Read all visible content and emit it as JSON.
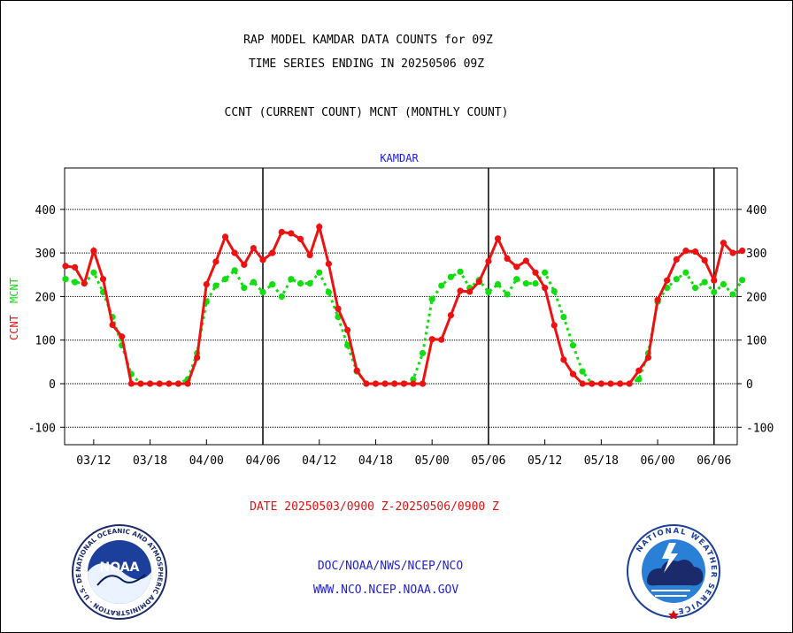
{
  "header": {
    "title_line1": "RAP MODEL KAMDAR DATA COUNTS for 09Z",
    "title_line2": "TIME SERIES ENDING IN 20250506 09Z",
    "subtitle": "CCNT (CURRENT COUNT) MCNT (MONTHLY COUNT)"
  },
  "footer": {
    "date_range": "DATE 20250503/0900 Z-20250506/0900 Z",
    "credit_line1": "DOC/NOAA/NWS/NCEP/NCO",
    "credit_line2": "WWW.NCO.NCEP.NOAA.GOV"
  },
  "logos": {
    "noaa_label": "NOAA",
    "noaa_ring_text": "NATIONAL OCEANIC AND ATMOSPHERIC ADMINISTRATION · U.S. DEPARTMENT OF COMMERCE ·",
    "nws_ring_text": "NATIONAL WEATHER SERVICE"
  },
  "colors": {
    "ccnt": "#ee1111",
    "mcnt": "#11dd11",
    "station": "#1a1ae6",
    "date_range": "#e01010",
    "credit": "#2222cc"
  },
  "chart_data": {
    "type": "line",
    "title": "KAMDAR",
    "ylabel_ccnt": "CCNT",
    "ylabel_mcnt": "MCNT",
    "ylim": [
      -140,
      495
    ],
    "yticks": [
      -100,
      0,
      100,
      200,
      300,
      400
    ],
    "x_tick_labels": [
      "03/12",
      "03/18",
      "04/00",
      "04/06",
      "04/12",
      "04/18",
      "05/00",
      "05/06",
      "05/12",
      "05/18",
      "06/00",
      "06/06"
    ],
    "x_tick_index": [
      3,
      9,
      15,
      21,
      27,
      33,
      39,
      45,
      51,
      57,
      63,
      69
    ],
    "day_boundaries_index": [
      21,
      45,
      69
    ],
    "grid": true,
    "series": [
      {
        "name": "CCNT",
        "values": [
          270,
          267,
          230,
          305,
          240,
          135,
          108,
          0,
          0,
          0,
          0,
          0,
          0,
          0,
          60,
          228,
          280,
          337,
          300,
          273,
          311,
          284,
          300,
          348,
          345,
          332,
          295,
          360,
          275,
          172,
          123,
          30,
          0,
          0,
          0,
          0,
          0,
          0,
          0,
          102,
          101,
          157,
          213,
          211,
          234,
          281,
          333,
          287,
          268,
          282,
          255,
          220,
          134,
          55,
          22,
          0,
          0,
          0,
          0,
          0,
          0,
          30,
          60,
          192,
          237,
          285,
          305,
          303,
          283,
          237,
          323,
          300,
          305
        ]
      },
      {
        "name": "MCNT",
        "values": [
          240,
          233,
          230,
          255,
          210,
          153,
          88,
          22,
          0,
          0,
          0,
          0,
          0,
          10,
          70,
          188,
          225,
          240,
          260,
          220,
          233,
          210,
          228,
          200,
          240,
          230,
          230,
          255,
          210,
          153,
          88,
          28,
          0,
          0,
          0,
          0,
          0,
          10,
          70,
          194,
          225,
          245,
          257,
          220,
          238,
          210,
          228,
          205,
          240,
          230,
          230,
          255,
          212,
          153,
          88,
          28,
          0,
          0,
          0,
          0,
          0,
          10,
          70,
          188,
          220,
          240,
          255,
          220,
          233,
          210,
          228,
          205,
          238
        ]
      }
    ]
  }
}
